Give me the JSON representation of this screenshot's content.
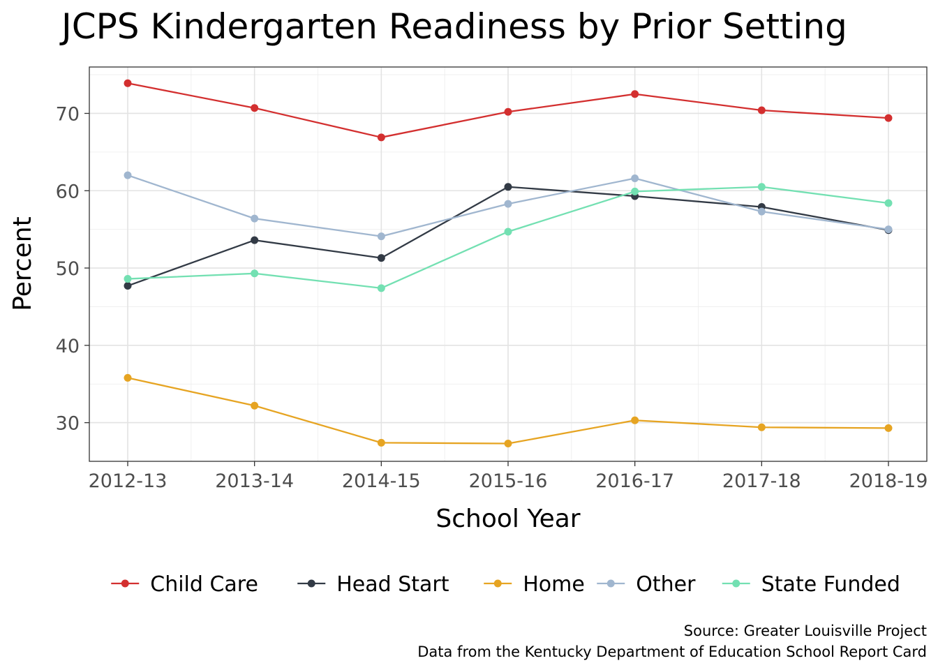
{
  "chart_data": {
    "type": "line",
    "title": "JCPS Kindergarten Readiness by Prior Setting",
    "xlabel": "School Year",
    "ylabel": "Percent",
    "categories": [
      "2012-13",
      "2013-14",
      "2014-15",
      "2015-16",
      "2016-17",
      "2017-18",
      "2018-19"
    ],
    "ylim": [
      25,
      76
    ],
    "yticks": [
      30,
      40,
      50,
      60,
      70
    ],
    "grid": true,
    "legend_position": "bottom",
    "series": [
      {
        "name": "Child Care",
        "color": "#d32f2f",
        "values": [
          73.9,
          70.7,
          66.9,
          70.2,
          72.5,
          70.4,
          69.4
        ]
      },
      {
        "name": "Head Start",
        "color": "#323a45",
        "values": [
          47.7,
          53.6,
          51.3,
          60.5,
          59.3,
          57.9,
          54.9
        ]
      },
      {
        "name": "Home",
        "color": "#e6a422",
        "values": [
          35.8,
          32.2,
          27.4,
          27.3,
          30.3,
          29.4,
          29.3
        ]
      },
      {
        "name": "Other",
        "color": "#a0b6cf",
        "values": [
          62.0,
          56.4,
          54.1,
          58.3,
          61.6,
          57.3,
          55.0
        ]
      },
      {
        "name": "State Funded",
        "color": "#73e0b2",
        "values": [
          48.6,
          49.3,
          47.4,
          54.7,
          59.9,
          60.5,
          58.4
        ]
      }
    ],
    "caption": [
      "Source: Greater Louisville Project",
      "Data from the Kentucky Department of Education School Report Card"
    ]
  }
}
